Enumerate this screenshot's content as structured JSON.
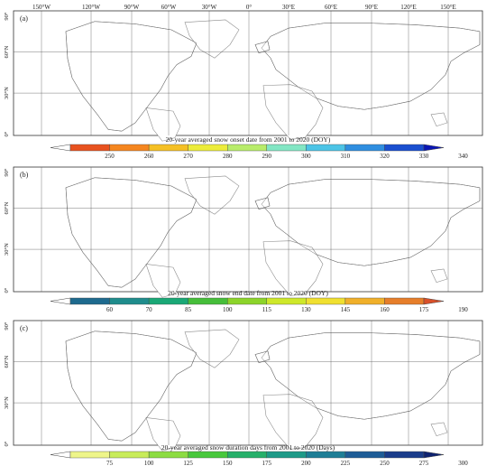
{
  "top_axis": {
    "longitude_labels": [
      "150°W",
      "120°W",
      "90°W",
      "60°W",
      "30°W",
      "0°",
      "30°E",
      "60°E",
      "90°E",
      "120°E",
      "150°E"
    ]
  },
  "panels": [
    {
      "label": "(a)",
      "lat_labels": [
        "90°",
        "60°N",
        "30°N",
        "0°"
      ],
      "colorbar_title": "20-year averaged snow onset date from 2001 to 2020 (DOY)",
      "ticks": [
        "250",
        "260",
        "270",
        "280",
        "290",
        "300",
        "310",
        "320",
        "330",
        "340"
      ],
      "colors": [
        "#ffffff",
        "#e8521f",
        "#f5861f",
        "#f5c024",
        "#ecec3a",
        "#b8ec6a",
        "#82e6c4",
        "#4cc4e6",
        "#2f8ee0",
        "#1a4fd0",
        "#0a16b4"
      ],
      "map_palette": {
        "arctic": "#c8e64a",
        "north": "#6cd6c6",
        "mid": "#2a8ae6",
        "south": "#0a1eb0"
      }
    },
    {
      "label": "(b)",
      "lat_labels": [
        "90°",
        "60°N",
        "30°N",
        "0°"
      ],
      "colorbar_title": "20-year averaged snow end date from 2001 to 2020 (DOY)",
      "ticks": [
        "60",
        "70",
        "85",
        "100",
        "115",
        "130",
        "145",
        "160",
        "175",
        "190"
      ],
      "colors": [
        "#ffffff",
        "#1e6a8e",
        "#1f8c8c",
        "#1aa876",
        "#46be3a",
        "#8cd42a",
        "#cee82a",
        "#f0e030",
        "#f0b02a",
        "#e67e2a",
        "#d8502a"
      ],
      "map_palette": {
        "arctic": "#e8a030",
        "north": "#d6e030",
        "mid": "#5cc23a",
        "south": "#1a8a8a"
      }
    },
    {
      "label": "(c)",
      "lat_labels": [
        "90°",
        "60°N",
        "30°N",
        "0°"
      ],
      "colorbar_title": "20-year averaged snow duration days from 2001 to 2020 (Days)",
      "ticks": [
        "75",
        "100",
        "125",
        "150",
        "175",
        "200",
        "225",
        "250",
        "275",
        "300"
      ],
      "colors": [
        "#ffffff",
        "#eef58a",
        "#c8ec5a",
        "#8cdc42",
        "#48c83c",
        "#26b06a",
        "#1e9a88",
        "#1e7e96",
        "#1e5c96",
        "#1a3c8a",
        "#0e2270"
      ],
      "map_palette": {
        "arctic": "#1a3c8a",
        "north": "#1e6e96",
        "mid": "#2ab068",
        "south": "#b8e848"
      }
    }
  ]
}
